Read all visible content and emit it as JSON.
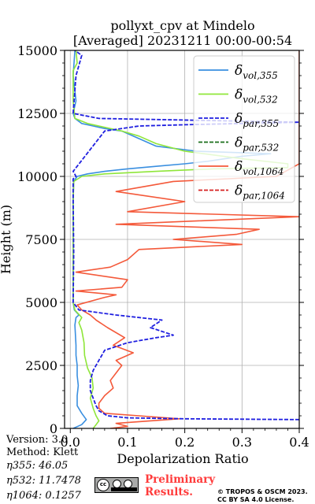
{
  "chart_data": {
    "type": "line",
    "title_line1": "pollyxt_cpv at Mindelo",
    "title_line2": "[Averaged] 20231211 00:00-00:54",
    "xlabel": "Depolarization Ratio",
    "ylabel": "Height (m)",
    "xlim": [
      -0.01,
      0.4
    ],
    "ylim": [
      0,
      15000
    ],
    "xticks": [
      "0.0",
      "0.1",
      "0.2",
      "0.3",
      "0.4"
    ],
    "yticks": [
      "0",
      "2500",
      "5000",
      "7500",
      "10000",
      "12500",
      "15000"
    ],
    "grid": true,
    "legend_position": "top-right",
    "series": [
      {
        "name": "δvol,355",
        "legend_base": "δ",
        "legend_sub": "vol,355",
        "color": "#3a8fe0",
        "dash": "solid",
        "points": [
          [
            0.005,
            0
          ],
          [
            0.02,
            150
          ],
          [
            0.028,
            350
          ],
          [
            0.02,
            600
          ],
          [
            0.012,
            900
          ],
          [
            0.012,
            1300
          ],
          [
            0.014,
            1700
          ],
          [
            0.012,
            2100
          ],
          [
            0.012,
            2500
          ],
          [
            0.01,
            2900
          ],
          [
            0.01,
            3300
          ],
          [
            0.009,
            3700
          ],
          [
            0.008,
            4100
          ],
          [
            0.01,
            4400
          ],
          [
            0.015,
            4500
          ],
          [
            0.007,
            4700
          ],
          [
            0.005,
            5000
          ],
          [
            0.005,
            7000
          ],
          [
            0.005,
            9000
          ],
          [
            0.006,
            9800
          ],
          [
            0.012,
            10000
          ],
          [
            0.03,
            10100
          ],
          [
            0.06,
            10200
          ],
          [
            0.1,
            10300
          ],
          [
            0.15,
            10400
          ],
          [
            0.2,
            10500
          ],
          [
            0.24,
            10600
          ],
          [
            0.27,
            10700
          ],
          [
            0.3,
            10800
          ],
          [
            0.35,
            10900
          ],
          [
            0.22,
            11000
          ],
          [
            0.15,
            11200
          ],
          [
            0.12,
            11500
          ],
          [
            0.09,
            11800
          ],
          [
            0.06,
            11900
          ],
          [
            0.04,
            12000
          ],
          [
            0.02,
            12100
          ],
          [
            0.008,
            12300
          ],
          [
            0.005,
            12500
          ],
          [
            0.01,
            13000
          ],
          [
            0.005,
            14000
          ],
          [
            0.008,
            15000
          ]
        ]
      },
      {
        "name": "δvol,532",
        "legend_base": "δ",
        "legend_sub": "vol,532",
        "color": "#8fe63a",
        "dash": "solid",
        "points": [
          [
            0.04,
            0
          ],
          [
            0.045,
            150
          ],
          [
            0.05,
            300
          ],
          [
            0.045,
            500
          ],
          [
            0.04,
            800
          ],
          [
            0.035,
            1200
          ],
          [
            0.04,
            1600
          ],
          [
            0.038,
            2000
          ],
          [
            0.03,
            2400
          ],
          [
            0.025,
            2900
          ],
          [
            0.024,
            3400
          ],
          [
            0.02,
            3900
          ],
          [
            0.015,
            4200
          ],
          [
            0.02,
            4400
          ],
          [
            0.008,
            4700
          ],
          [
            0.005,
            5000
          ],
          [
            0.005,
            7000
          ],
          [
            0.005,
            9000
          ],
          [
            0.006,
            9800
          ],
          [
            0.02,
            10000
          ],
          [
            0.06,
            10100
          ],
          [
            0.15,
            10200
          ],
          [
            0.25,
            10300
          ],
          [
            0.38,
            10350
          ],
          [
            0.38,
            10500
          ],
          [
            0.3,
            10700
          ],
          [
            0.2,
            11000
          ],
          [
            0.15,
            11300
          ],
          [
            0.12,
            11600
          ],
          [
            0.09,
            11800
          ],
          [
            0.06,
            11950
          ],
          [
            0.03,
            12100
          ],
          [
            0.008,
            12300
          ],
          [
            0.005,
            13000
          ],
          [
            0.005,
            14200
          ],
          [
            0.012,
            14500
          ],
          [
            0.01,
            15000
          ]
        ]
      },
      {
        "name": "δpar,355",
        "legend_base": "δ",
        "legend_sub": "par,355",
        "color": "#1f1fe0",
        "dash": "dashed",
        "points": [
          [
            0.4,
            350
          ],
          [
            0.2,
            380
          ],
          [
            0.1,
            420
          ],
          [
            0.065,
            500
          ],
          [
            0.05,
            700
          ],
          [
            0.045,
            900
          ],
          [
            0.04,
            1200
          ],
          [
            0.035,
            1500
          ],
          [
            0.035,
            1900
          ],
          [
            0.04,
            2300
          ],
          [
            0.05,
            2700
          ],
          [
            0.06,
            3100
          ],
          [
            0.1,
            3400
          ],
          [
            0.15,
            3600
          ],
          [
            0.18,
            3700
          ],
          [
            0.14,
            4000
          ],
          [
            0.16,
            4300
          ],
          [
            0.08,
            4500
          ],
          [
            0.015,
            4700
          ],
          [
            0.005,
            5000
          ],
          [
            0.006,
            7000
          ],
          [
            0.005,
            9000
          ],
          [
            0.005,
            9900
          ],
          [
            0.01,
            10000
          ],
          [
            0.005,
            10200
          ],
          [
            0.06,
            11800
          ],
          [
            0.12,
            12000
          ],
          [
            0.2,
            12050
          ],
          [
            0.3,
            12100
          ],
          [
            0.4,
            12150
          ],
          [
            0.05,
            12300
          ],
          [
            0.005,
            12500
          ],
          [
            0.01,
            14000
          ],
          [
            0.02,
            14800
          ],
          [
            0.008,
            15000
          ]
        ]
      },
      {
        "name": "δpar,532",
        "legend_base": "δ",
        "legend_sub": "par,532",
        "color": "#1a6e1a",
        "dash": "dashed",
        "points": []
      },
      {
        "name": "δvol,1064",
        "legend_base": "δ",
        "legend_sub": "vol,1064",
        "color": "#f4593a",
        "dash": "solid",
        "points": [
          [
            0.07,
            0
          ],
          [
            0.1,
            80
          ],
          [
            0.08,
            200
          ],
          [
            0.19,
            380
          ],
          [
            0.12,
            500
          ],
          [
            0.06,
            600
          ],
          [
            0.05,
            800
          ],
          [
            0.05,
            1000
          ],
          [
            0.06,
            1300
          ],
          [
            0.075,
            1600
          ],
          [
            0.07,
            1900
          ],
          [
            0.08,
            2200
          ],
          [
            0.09,
            2500
          ],
          [
            0.08,
            2700
          ],
          [
            0.11,
            3000
          ],
          [
            0.075,
            3300
          ],
          [
            0.095,
            3600
          ],
          [
            0.065,
            4000
          ],
          [
            0.045,
            4300
          ],
          [
            0.035,
            4500
          ],
          [
            0.02,
            4700
          ],
          [
            0.012,
            4900
          ],
          [
            0.06,
            5200
          ],
          [
            0.08,
            5300
          ],
          [
            0.01,
            5450
          ],
          [
            0.09,
            5600
          ],
          [
            0.1,
            5900
          ],
          [
            0.01,
            6200
          ],
          [
            0.07,
            6400
          ],
          [
            0.1,
            6700
          ],
          [
            0.12,
            7100
          ],
          [
            0.3,
            7300
          ],
          [
            0.18,
            7500
          ],
          [
            0.29,
            7700
          ],
          [
            0.33,
            7900
          ],
          [
            0.08,
            8100
          ],
          [
            0.4,
            8400
          ],
          [
            0.1,
            8600
          ],
          [
            0.2,
            9000
          ],
          [
            0.08,
            9400
          ],
          [
            0.18,
            9800
          ],
          [
            0.36,
            10000
          ],
          [
            0.4,
            10500
          ],
          [
            0.4,
            11000
          ],
          [
            0.4,
            11500
          ],
          [
            0.4,
            12000
          ],
          [
            0.4,
            12500
          ],
          [
            0.4,
            13000
          ],
          [
            0.4,
            13500
          ],
          [
            0.4,
            14000
          ],
          [
            0.4,
            14500
          ],
          [
            0.4,
            15000
          ]
        ]
      },
      {
        "name": "δpar,1064",
        "legend_base": "δ",
        "legend_sub": "par,1064",
        "color": "#d62020",
        "dash": "dashed",
        "points": []
      }
    ]
  },
  "metadata": {
    "version": "Version: 3.0",
    "method": "Method: Klett",
    "eta355": "η355:  46.05",
    "eta532": "η532: 11.7478",
    "eta1064": "η1064: 0.1257"
  },
  "branding": {
    "preliminary_line1": "Preliminary",
    "preliminary_line2": "Results.",
    "license_line1": "© TROPOS & OSCM 2023.",
    "license_line2": "CC BY SA 4.0 License.",
    "license_badge_text": "cc",
    "license_badge_icon": "cc-by-sa-icon"
  }
}
